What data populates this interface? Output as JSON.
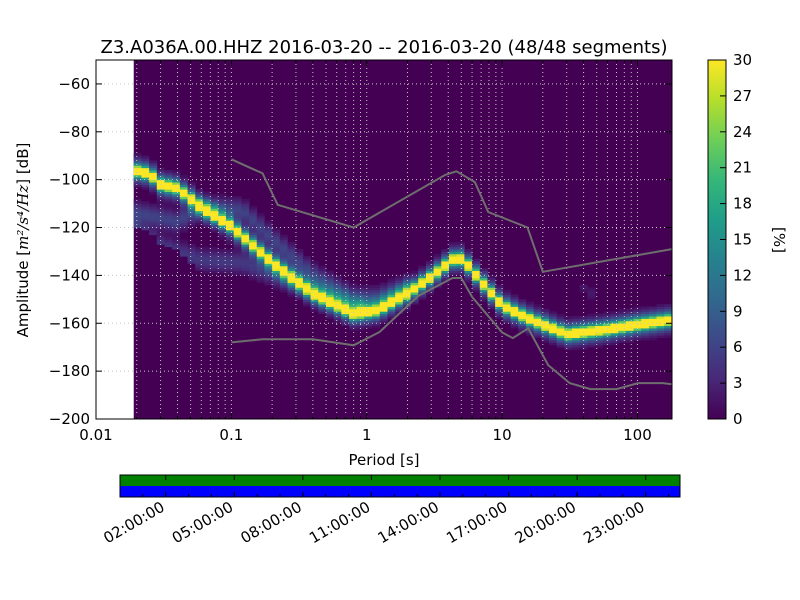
{
  "chart_data": {
    "type": "heatmap",
    "title": "Z3.A036A.00.HHZ   2016-03-20 -- 2016-03-20  (48/48 segments)",
    "xlabel": "Period [s]",
    "ylabel": "Amplitude [m²/s⁴/Hz] [dB]",
    "ylabel_parts": {
      "prefix": "Amplitude [",
      "unit": "m²/s⁴/Hz",
      "suffix": "] [dB]"
    },
    "xscale": "log",
    "xlim": [
      0.01,
      180
    ],
    "ylim": [
      -200,
      -50
    ],
    "xticks": [
      {
        "value": 0.01,
        "label": "0.01"
      },
      {
        "value": 0.1,
        "label": "0.1"
      },
      {
        "value": 1,
        "label": "1"
      },
      {
        "value": 10,
        "label": "10"
      },
      {
        "value": 100,
        "label": "100"
      }
    ],
    "yticks": [
      {
        "value": -60,
        "label": "−60"
      },
      {
        "value": -80,
        "label": "−80"
      },
      {
        "value": -100,
        "label": "−100"
      },
      {
        "value": -120,
        "label": "−120"
      },
      {
        "value": -140,
        "label": "−140"
      },
      {
        "value": -160,
        "label": "−160"
      },
      {
        "value": -180,
        "label": "−180"
      },
      {
        "value": -200,
        "label": "−200"
      }
    ],
    "grid": true,
    "data_start_period": 0.019,
    "colorbar": {
      "label": "[%]",
      "range": [
        0,
        30
      ],
      "ticks": [
        0,
        3,
        6,
        9,
        12,
        15,
        18,
        21,
        24,
        27,
        30
      ],
      "colors": [
        "#440154",
        "#482878",
        "#3e4989",
        "#31688e",
        "#26828e",
        "#1f9e89",
        "#35b779",
        "#6ece58",
        "#b5de2b",
        "#fde725"
      ]
    },
    "model_lines_color": "#6e6e6e",
    "nhnm": [
      [
        0.1,
        -91.5
      ],
      [
        0.17,
        -97.4
      ],
      [
        0.22,
        -110.5
      ],
      [
        0.8,
        -120
      ],
      [
        3.8,
        -98
      ],
      [
        4.6,
        -96.5
      ],
      [
        6.3,
        -101
      ],
      [
        7.9,
        -113.5
      ],
      [
        15.4,
        -120
      ],
      [
        20,
        -138.5
      ],
      [
        180,
        -129
      ]
    ],
    "nlnm": [
      [
        0.1,
        -168
      ],
      [
        0.17,
        -166.7
      ],
      [
        0.4,
        -166.7
      ],
      [
        0.8,
        -169.2
      ],
      [
        1.24,
        -163.7
      ],
      [
        2.4,
        -148.6
      ],
      [
        4.3,
        -141.1
      ],
      [
        5,
        -141.1
      ],
      [
        6,
        -149
      ],
      [
        10,
        -163.8
      ],
      [
        12,
        -166.2
      ],
      [
        15.6,
        -162.1
      ],
      [
        21.9,
        -177.5
      ],
      [
        31.6,
        -185
      ],
      [
        45,
        -187.5
      ],
      [
        70,
        -187.5
      ],
      [
        101,
        -185
      ],
      [
        154,
        -185
      ],
      [
        180,
        -185.5
      ]
    ],
    "mode": [
      [
        0.019,
        -96.5
      ],
      [
        0.025,
        -98
      ],
      [
        0.03,
        -102.5
      ],
      [
        0.04,
        -104
      ],
      [
        0.06,
        -112
      ],
      [
        0.1,
        -120
      ],
      [
        0.2,
        -135
      ],
      [
        0.4,
        -148
      ],
      [
        0.8,
        -156.5
      ],
      [
        1.2,
        -155
      ],
      [
        2,
        -148
      ],
      [
        3,
        -141
      ],
      [
        4.5,
        -133
      ],
      [
        5.2,
        -134
      ],
      [
        7,
        -143
      ],
      [
        10,
        -153
      ],
      [
        15,
        -158
      ],
      [
        20,
        -161
      ],
      [
        30,
        -165
      ],
      [
        60,
        -163
      ],
      [
        100,
        -161
      ],
      [
        180,
        -159
      ]
    ],
    "spread": [
      [
        0.019,
        6
      ],
      [
        0.06,
        10
      ],
      [
        0.1,
        14
      ],
      [
        0.3,
        12
      ],
      [
        0.8,
        6
      ],
      [
        2,
        4
      ],
      [
        10,
        4
      ],
      [
        30,
        3
      ],
      [
        180,
        3
      ]
    ],
    "upper": [
      [
        0.019,
        -114
      ],
      [
        0.04,
        -118
      ],
      [
        0.06,
        -112
      ],
      [
        0.12,
        -113
      ],
      [
        0.2,
        -125
      ],
      [
        0.4,
        -140
      ],
      [
        0.8,
        -150
      ],
      [
        1.2,
        -150
      ],
      [
        2,
        -145
      ]
    ],
    "lower": [
      [
        0.019,
        -120
      ],
      [
        0.03,
        -128
      ],
      [
        0.06,
        -134
      ],
      [
        0.12,
        -135
      ],
      [
        0.2,
        -140
      ],
      [
        0.5,
        -148
      ],
      [
        1,
        -154
      ]
    ],
    "tail": [
      [
        8,
        -120
      ],
      [
        12,
        -117
      ],
      [
        16,
        -115
      ],
      [
        20,
        -118
      ],
      [
        30,
        -138
      ],
      [
        50,
        -150
      ]
    ]
  },
  "timeline": {
    "tick_labels": [
      "02:00:00",
      "05:00:00",
      "08:00:00",
      "11:00:00",
      "14:00:00",
      "17:00:00",
      "20:00:00",
      "23:00:00"
    ],
    "tick_hours": [
      2,
      5,
      8,
      11,
      14,
      17,
      20,
      23
    ],
    "start_hour": 0,
    "end_hour": 24.5,
    "top_color": "#008000",
    "bottom_color": "#0000ff"
  }
}
